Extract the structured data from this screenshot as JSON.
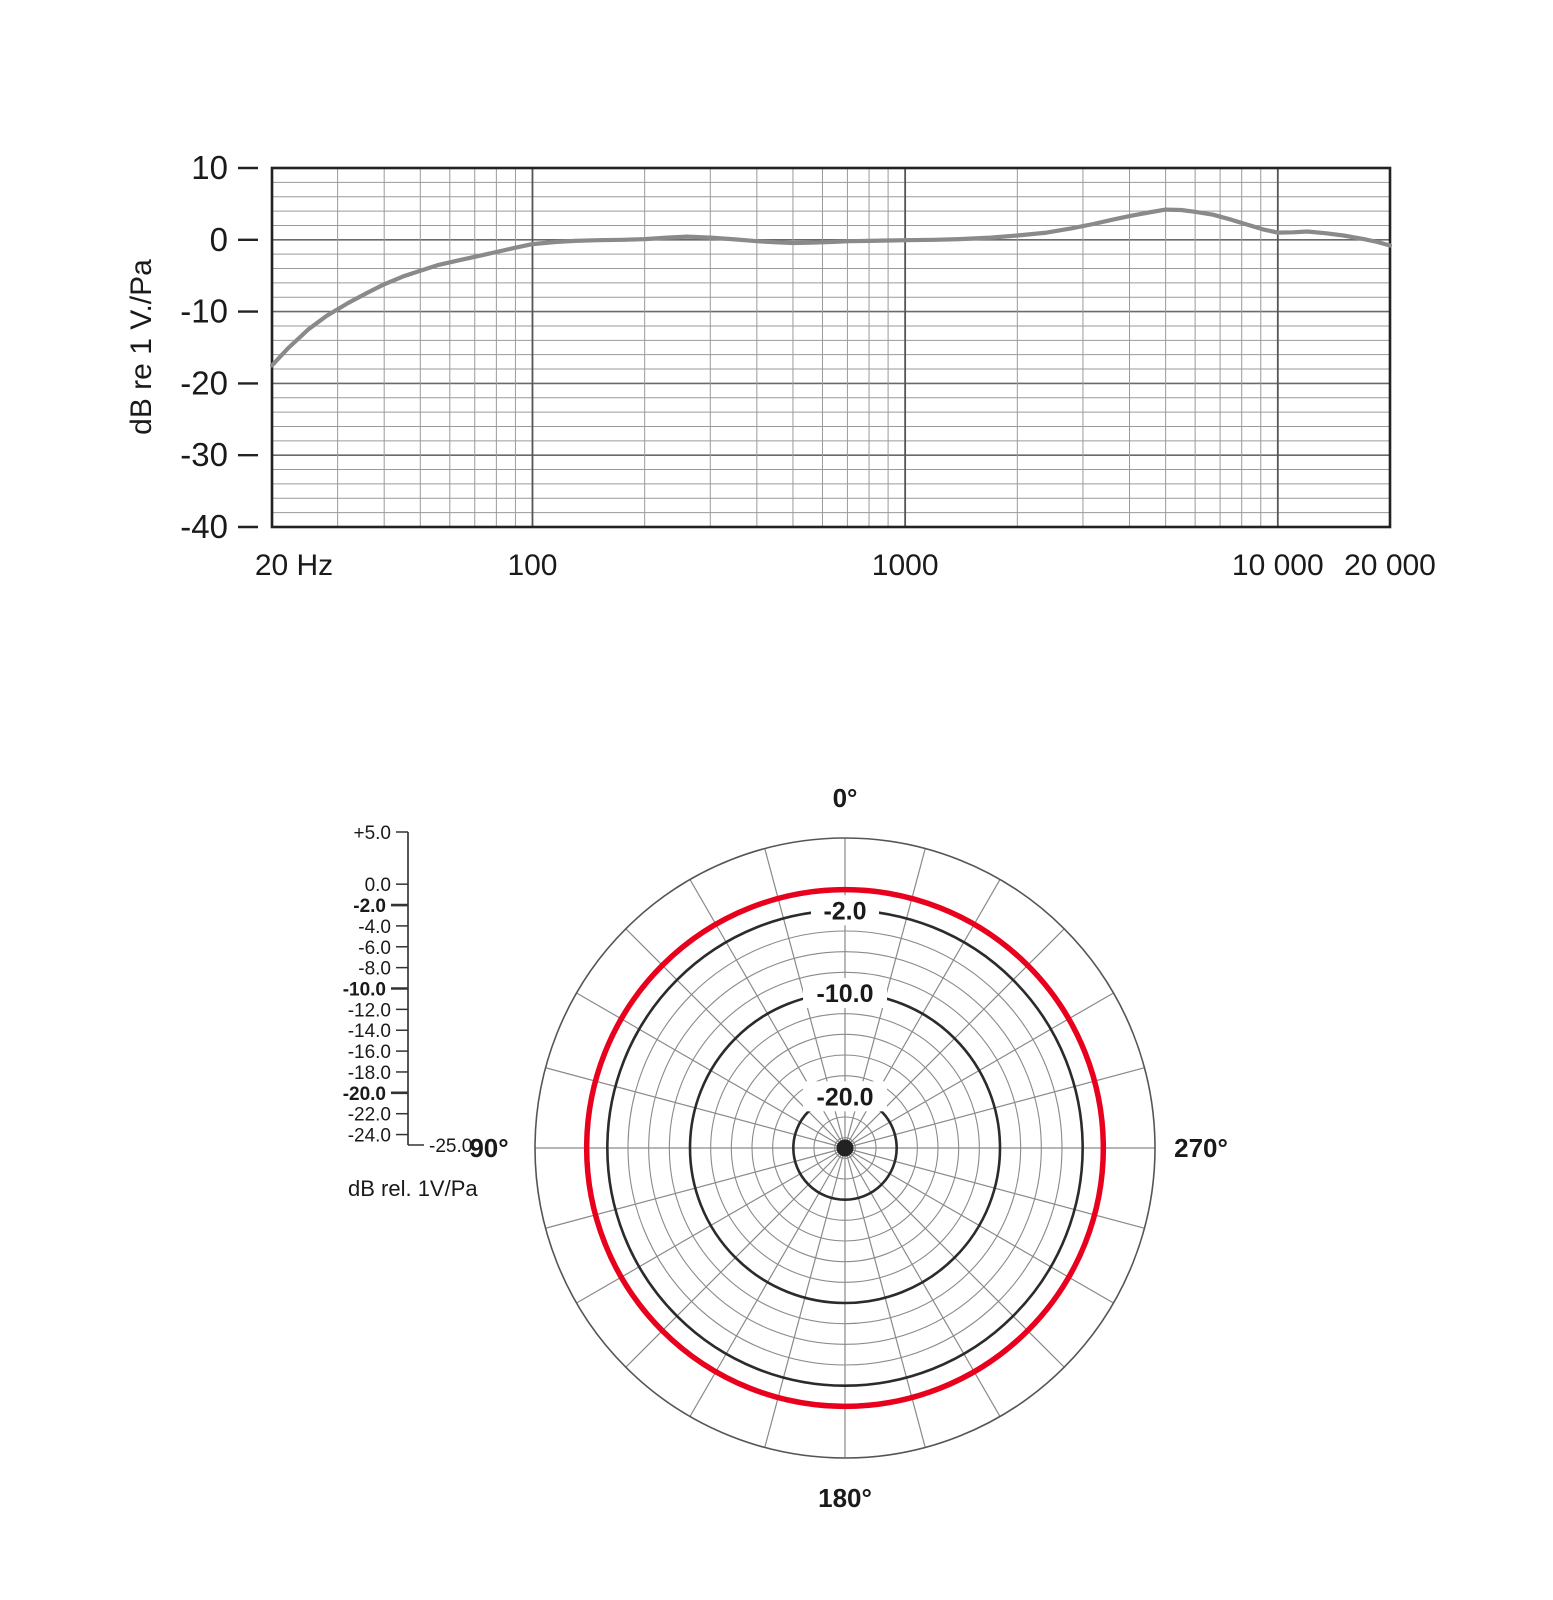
{
  "page": {
    "background": "#ffffff"
  },
  "chart_data": [
    {
      "type": "line",
      "name": "frequency-response",
      "ylabel": "dB re 1 V./Pa",
      "x_scale": "log",
      "xlim": [
        20,
        20000
      ],
      "ylim": [
        -40,
        10
      ],
      "grid": true,
      "y_major_ticks": [
        {
          "value": 10,
          "label": "10"
        },
        {
          "value": 0,
          "label": "0"
        },
        {
          "value": -10,
          "label": "-10"
        },
        {
          "value": -20,
          "label": "-20"
        },
        {
          "value": -30,
          "label": "-30"
        },
        {
          "value": -40,
          "label": "-40"
        }
      ],
      "y_minor_step": 2,
      "x_ticks": [
        {
          "value": 20,
          "label": "20 Hz",
          "major": false
        },
        {
          "value": 100,
          "label": "100",
          "major": true
        },
        {
          "value": 1000,
          "label": "1000",
          "major": true
        },
        {
          "value": 10000,
          "label": "10 000",
          "major": true
        },
        {
          "value": 20000,
          "label": "20 000",
          "major": false
        }
      ],
      "series": [
        {
          "name": "response-curve",
          "color": "#8a8a8a",
          "points": [
            [
              20,
              -17.5
            ],
            [
              22,
              -15.2
            ],
            [
              25,
              -12.5
            ],
            [
              28,
              -10.6
            ],
            [
              32,
              -8.8
            ],
            [
              36,
              -7.4
            ],
            [
              40,
              -6.2
            ],
            [
              45,
              -5.1
            ],
            [
              50,
              -4.3
            ],
            [
              56,
              -3.5
            ],
            [
              63,
              -2.9
            ],
            [
              71,
              -2.3
            ],
            [
              80,
              -1.7
            ],
            [
              90,
              -1.1
            ],
            [
              100,
              -0.6
            ],
            [
              115,
              -0.3
            ],
            [
              130,
              -0.15
            ],
            [
              150,
              -0.05
            ],
            [
              175,
              0.0
            ],
            [
              200,
              0.1
            ],
            [
              230,
              0.3
            ],
            [
              260,
              0.45
            ],
            [
              300,
              0.3
            ],
            [
              350,
              0.05
            ],
            [
              400,
              -0.2
            ],
            [
              450,
              -0.35
            ],
            [
              500,
              -0.45
            ],
            [
              560,
              -0.4
            ],
            [
              630,
              -0.3
            ],
            [
              710,
              -0.2
            ],
            [
              800,
              -0.15
            ],
            [
              900,
              -0.1
            ],
            [
              1000,
              -0.05
            ],
            [
              1200,
              0.0
            ],
            [
              1400,
              0.1
            ],
            [
              1700,
              0.3
            ],
            [
              2000,
              0.6
            ],
            [
              2400,
              1.0
            ],
            [
              2800,
              1.6
            ],
            [
              3200,
              2.2
            ],
            [
              3600,
              2.8
            ],
            [
              4000,
              3.3
            ],
            [
              4500,
              3.8
            ],
            [
              5000,
              4.2
            ],
            [
              5500,
              4.15
            ],
            [
              6000,
              3.9
            ],
            [
              6700,
              3.5
            ],
            [
              7500,
              2.8
            ],
            [
              8300,
              2.1
            ],
            [
              9200,
              1.4
            ],
            [
              10000,
              1.0
            ],
            [
              11000,
              1.05
            ],
            [
              12000,
              1.15
            ],
            [
              13500,
              0.9
            ],
            [
              15000,
              0.6
            ],
            [
              17000,
              0.1
            ],
            [
              18500,
              -0.3
            ],
            [
              20000,
              -0.8
            ]
          ]
        }
      ]
    },
    {
      "type": "polar",
      "name": "polar-pattern",
      "angle_labels": [
        {
          "angle": 0,
          "label": "0°"
        },
        {
          "angle": 90,
          "label": "90°"
        },
        {
          "angle": 270,
          "label": "270°"
        },
        {
          "angle": 180,
          "label": "180°"
        }
      ],
      "r_axis": {
        "min": -25,
        "max": 5
      },
      "rings_db": [
        5,
        0,
        -2,
        -4,
        -6,
        -8,
        -10,
        -12,
        -14,
        -16,
        -18,
        -20,
        -22,
        -24
      ],
      "bold_rings_db": [
        -2,
        -10,
        -20
      ],
      "ring_labels": [
        {
          "db": -2,
          "label": "-2.0"
        },
        {
          "db": -10,
          "label": "-10.0"
        },
        {
          "db": -20,
          "label": "-20.0"
        }
      ],
      "spoke_step_deg": 15,
      "pattern": {
        "name": "omnidirectional-response",
        "color": "#e8001c",
        "db": 0
      },
      "scale": {
        "ticks": [
          {
            "db": 5,
            "label": "+5.0",
            "bold": false
          },
          {
            "db": 0,
            "label": "0.0",
            "bold": false
          },
          {
            "db": -2,
            "label": "-2.0",
            "bold": true
          },
          {
            "db": -4,
            "label": "-4.0",
            "bold": false
          },
          {
            "db": -6,
            "label": "-6.0",
            "bold": false
          },
          {
            "db": -8,
            "label": "-8.0",
            "bold": false
          },
          {
            "db": -10,
            "label": "-10.0",
            "bold": true
          },
          {
            "db": -12,
            "label": "-12.0",
            "bold": false
          },
          {
            "db": -14,
            "label": "-14.0",
            "bold": false
          },
          {
            "db": -16,
            "label": "-16.0",
            "bold": false
          },
          {
            "db": -18,
            "label": "-18.0",
            "bold": false
          },
          {
            "db": -20,
            "label": "-20.0",
            "bold": true
          },
          {
            "db": -22,
            "label": "-22.0",
            "bold": false
          },
          {
            "db": -24,
            "label": "-24.0",
            "bold": false
          }
        ],
        "min_label": "-25.0",
        "unit_label": "dB rel. 1V/Pa"
      }
    }
  ]
}
